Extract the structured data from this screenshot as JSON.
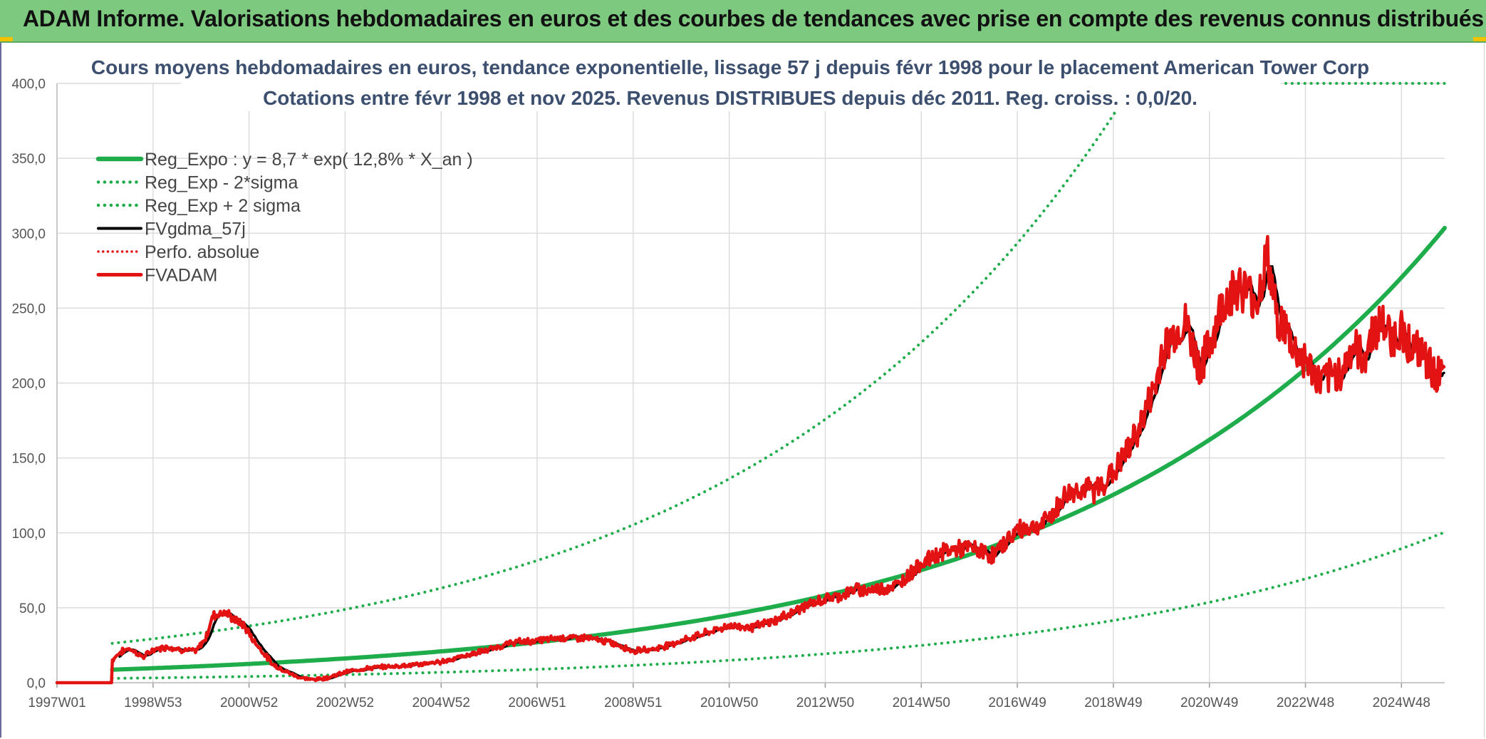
{
  "banner": {
    "title": "ADAM Informe. Valorisations hebdomadaires en euros et des courbes de tendances avec prise en compte des revenus connus distribués"
  },
  "chart_data": {
    "type": "line",
    "title": "Cours moyens hebdomadaires en euros, tendance exponentielle, lissage 57 j depuis févr 1998 pour le placement American Tower Corp",
    "subtitle": "Cotations entre févr 1998 et nov 2025. Revenus DISTRIBUES depuis déc 2011. Reg. croiss. : 0,0/20.",
    "xlabel": "",
    "ylabel": "",
    "ylim": [
      0,
      400
    ],
    "xlim": [
      1997.0,
      2025.9
    ],
    "grid": true,
    "legend_position": "top-left",
    "y_ticks": [
      "0,0",
      "50,0",
      "100,0",
      "150,0",
      "200,0",
      "250,0",
      "300,0",
      "350,0",
      "400,0"
    ],
    "y_tick_values": [
      0,
      50,
      100,
      150,
      200,
      250,
      300,
      350,
      400
    ],
    "x_ticks": [
      "1997W01",
      "1998W53",
      "2000W52",
      "2002W52",
      "2004W52",
      "2006W51",
      "2008W51",
      "2010W50",
      "2012W50",
      "2014W50",
      "2016W49",
      "2018W49",
      "2020W49",
      "2022W48",
      "2024W48"
    ],
    "x_tick_values": [
      1997.0,
      1999.0,
      2001.0,
      2003.0,
      2005.0,
      2007.0,
      2009.0,
      2011.0,
      2013.0,
      2015.0,
      2017.0,
      2019.0,
      2021.0,
      2023.0,
      2025.0
    ],
    "regression": {
      "a": 8.7,
      "rate": 0.128,
      "start": 1998.15,
      "end": 2025.9,
      "sigma_factor_low": 0.331,
      "sigma_factor_high": 3.02,
      "high_cap": 400
    },
    "series": [
      {
        "name": "Reg_Expo : y = 8,7 * exp( 12,8% *  X_an )",
        "color": "#1fad4b",
        "style": "solid",
        "width": 6,
        "kind": "reg"
      },
      {
        "name": "Reg_Exp - 2*sigma",
        "color": "#1fad4b",
        "style": "dotted",
        "width": 4,
        "kind": "reg_low"
      },
      {
        "name": "Reg_Exp + 2 sigma",
        "color": "#1fad4b",
        "style": "dotted",
        "width": 4,
        "kind": "reg_high"
      },
      {
        "name": "FVgdma_57j",
        "color": "#000000",
        "style": "solid",
        "width": 3.5,
        "kind": "smooth"
      },
      {
        "name": "Perfo. absolue",
        "color": "#e31313",
        "style": "dotted",
        "width": 3,
        "kind": "none"
      },
      {
        "name": "FVADAM",
        "color": "#e31313",
        "style": "solid",
        "width": 4.5,
        "kind": "price"
      }
    ],
    "price_points": {
      "x": [
        1997.0,
        1998.14,
        1998.15,
        1998.3,
        1998.5,
        1998.8,
        1999.0,
        1999.3,
        1999.6,
        1999.9,
        2000.1,
        2000.25,
        2000.5,
        2000.7,
        2000.9,
        2001.1,
        2001.3,
        2001.5,
        2001.8,
        2002.0,
        2002.3,
        2002.6,
        2002.8,
        2003.0,
        2003.3,
        2003.6,
        2004.0,
        2004.5,
        2005.0,
        2005.5,
        2006.0,
        2006.5,
        2007.0,
        2007.5,
        2008.0,
        2008.5,
        2008.8,
        2009.0,
        2009.5,
        2010.0,
        2010.5,
        2011.0,
        2011.5,
        2012.0,
        2012.5,
        2013.0,
        2013.3,
        2013.6,
        2014.0,
        2014.5,
        2015.0,
        2015.5,
        2016.0,
        2016.5,
        2017.0,
        2017.5,
        2017.8,
        2018.0,
        2018.3,
        2018.6,
        2019.0,
        2019.3,
        2019.6,
        2019.9,
        2020.0,
        2020.2,
        2020.5,
        2020.8,
        2021.0,
        2021.3,
        2021.6,
        2021.8,
        2022.0,
        2022.2,
        2022.4,
        2022.6,
        2022.8,
        2023.0,
        2023.3,
        2023.6,
        2023.8,
        2024.0,
        2024.2,
        2024.4,
        2024.6,
        2024.8,
        2025.0,
        2025.2,
        2025.4,
        2025.6,
        2025.9
      ],
      "y": [
        0,
        0,
        15,
        20,
        23,
        17,
        22,
        24,
        22,
        21,
        30,
        45,
        47,
        42,
        38,
        28,
        20,
        12,
        7,
        4,
        2,
        3,
        5,
        7,
        9,
        10,
        11,
        12,
        14,
        18,
        22,
        27,
        28,
        30,
        30,
        27,
        24,
        21,
        23,
        28,
        33,
        38,
        37,
        42,
        50,
        56,
        58,
        62,
        62,
        65,
        80,
        88,
        90,
        85,
        102,
        105,
        115,
        125,
        130,
        128,
        140,
        155,
        175,
        200,
        220,
        230,
        240,
        210,
        225,
        255,
        265,
        260,
        255,
        285,
        245,
        235,
        220,
        215,
        200,
        205,
        210,
        225,
        215,
        235,
        240,
        230,
        235,
        225,
        220,
        210,
        203
      ]
    }
  }
}
